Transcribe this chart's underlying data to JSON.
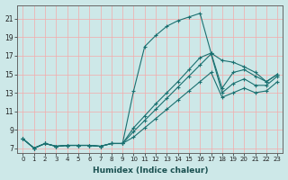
{
  "xlabel": "Humidex (Indice chaleur)",
  "bg_color": "#cde8e8",
  "grid_color": "#f5aaaa",
  "line_color": "#1a7070",
  "xlim": [
    -0.5,
    23.5
  ],
  "ylim": [
    6.5,
    22.5
  ],
  "xticks": [
    0,
    1,
    2,
    3,
    4,
    5,
    6,
    7,
    8,
    9,
    10,
    11,
    12,
    13,
    14,
    15,
    16,
    17,
    18,
    19,
    20,
    21,
    22,
    23
  ],
  "yticks": [
    7,
    9,
    11,
    13,
    15,
    17,
    19,
    21
  ],
  "lines": [
    [
      8.0,
      7.0,
      7.5,
      7.2,
      7.3,
      7.3,
      7.3,
      7.2,
      7.5,
      7.5,
      13.2,
      18.0,
      19.2,
      20.2,
      20.8,
      21.2,
      21.6,
      17.3,
      16.5,
      16.3,
      15.8,
      15.2,
      14.2,
      15.0
    ],
    [
      8.0,
      7.0,
      7.5,
      7.2,
      7.3,
      7.3,
      7.3,
      7.2,
      7.5,
      7.5,
      9.2,
      10.5,
      11.8,
      13.0,
      14.2,
      15.5,
      16.8,
      17.3,
      13.5,
      15.2,
      15.5,
      14.8,
      14.2,
      15.0
    ],
    [
      8.0,
      7.0,
      7.5,
      7.2,
      7.3,
      7.3,
      7.3,
      7.2,
      7.5,
      7.5,
      8.8,
      10.0,
      11.2,
      12.4,
      13.6,
      14.8,
      16.0,
      17.2,
      13.0,
      14.0,
      14.5,
      13.8,
      13.8,
      14.8
    ],
    [
      8.0,
      7.0,
      7.5,
      7.2,
      7.3,
      7.3,
      7.3,
      7.2,
      7.5,
      7.5,
      8.2,
      9.2,
      10.2,
      11.2,
      12.2,
      13.2,
      14.2,
      15.2,
      12.5,
      13.0,
      13.5,
      13.0,
      13.2,
      14.2
    ]
  ]
}
